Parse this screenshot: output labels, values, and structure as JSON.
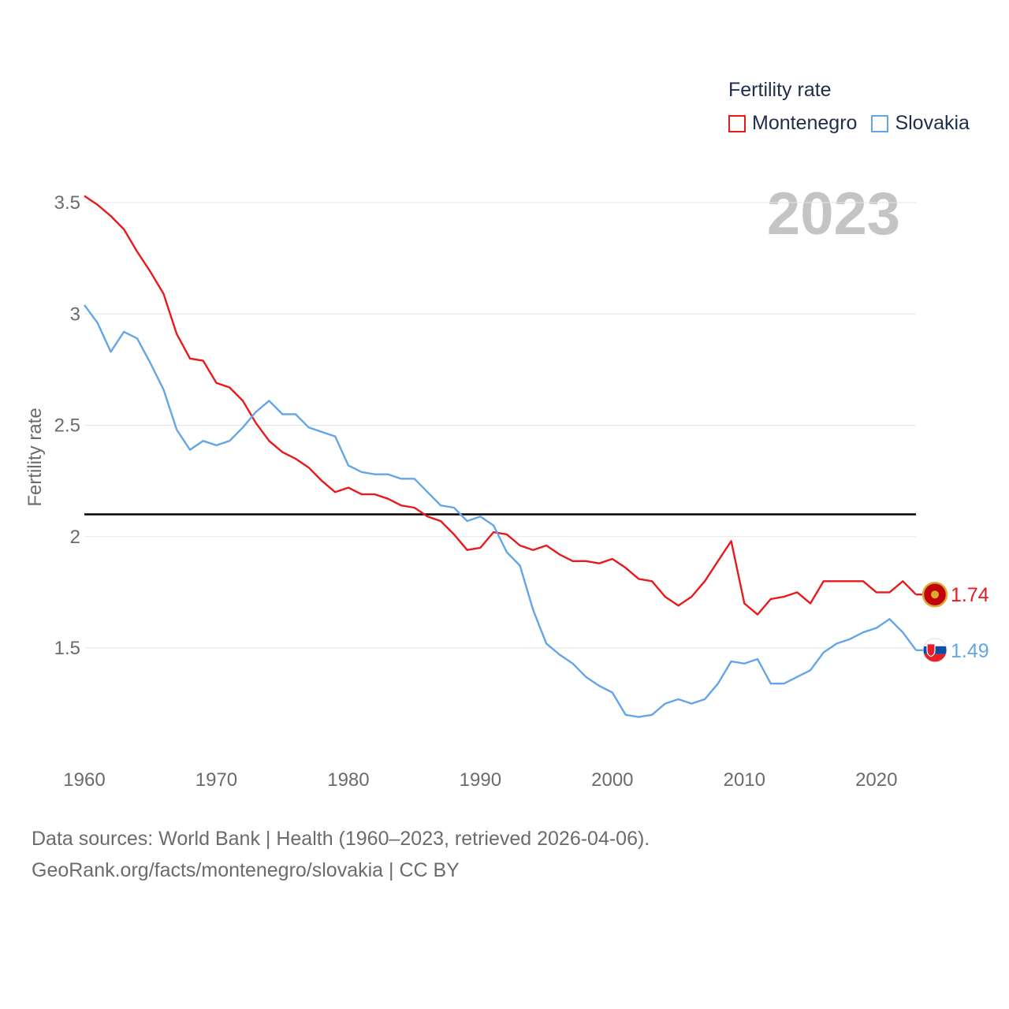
{
  "chart_data": {
    "type": "line",
    "legend_title": "Fertility rate",
    "ylabel": "Fertility rate",
    "current_year": "2023",
    "x": [
      1960,
      1961,
      1962,
      1963,
      1964,
      1965,
      1966,
      1967,
      1968,
      1969,
      1970,
      1971,
      1972,
      1973,
      1974,
      1975,
      1976,
      1977,
      1978,
      1979,
      1980,
      1981,
      1982,
      1983,
      1984,
      1985,
      1986,
      1987,
      1988,
      1989,
      1990,
      1991,
      1992,
      1993,
      1994,
      1995,
      1996,
      1997,
      1998,
      1999,
      2000,
      2001,
      2002,
      2003,
      2004,
      2005,
      2006,
      2007,
      2008,
      2009,
      2010,
      2011,
      2012,
      2013,
      2014,
      2015,
      2016,
      2017,
      2018,
      2019,
      2020,
      2021,
      2022,
      2023
    ],
    "xlim": [
      1960,
      2023
    ],
    "ylim": [
      1.0,
      3.53
    ],
    "xticks": [
      1960,
      1970,
      1980,
      1990,
      2000,
      2010,
      2020
    ],
    "yticks": [
      {
        "value": 1.5,
        "label": "1.5"
      },
      {
        "value": 2,
        "label": "2"
      },
      {
        "value": 2.5,
        "label": "2.5"
      },
      {
        "value": 3,
        "label": "3"
      },
      {
        "value": 3.5,
        "label": "3.5"
      }
    ],
    "reference_line": 2.1,
    "series": [
      {
        "name": "Montenegro",
        "color": "#e8191c",
        "end_label": "1.74",
        "flag": "montenegro-flag",
        "values": [
          3.53,
          3.49,
          3.44,
          3.38,
          3.28,
          3.19,
          3.09,
          2.91,
          2.8,
          2.79,
          2.69,
          2.67,
          2.61,
          2.51,
          2.43,
          2.38,
          2.35,
          2.31,
          2.25,
          2.2,
          2.22,
          2.19,
          2.19,
          2.17,
          2.14,
          2.13,
          2.09,
          2.07,
          2.01,
          1.94,
          1.95,
          2.02,
          2.01,
          1.96,
          1.94,
          1.96,
          1.92,
          1.89,
          1.89,
          1.88,
          1.9,
          1.86,
          1.81,
          1.8,
          1.73,
          1.69,
          1.73,
          1.8,
          1.89,
          1.98,
          1.7,
          1.65,
          1.72,
          1.73,
          1.75,
          1.7,
          1.8,
          1.8,
          1.8,
          1.8,
          1.75,
          1.75,
          1.8,
          1.74
        ]
      },
      {
        "name": "Slovakia",
        "color": "#62a6e8",
        "end_label": "1.49",
        "flag": "slovakia-flag",
        "values": [
          3.04,
          2.96,
          2.83,
          2.92,
          2.89,
          2.78,
          2.66,
          2.48,
          2.39,
          2.43,
          2.41,
          2.43,
          2.49,
          2.56,
          2.61,
          2.55,
          2.55,
          2.49,
          2.47,
          2.45,
          2.32,
          2.29,
          2.28,
          2.28,
          2.26,
          2.26,
          2.2,
          2.14,
          2.13,
          2.07,
          2.09,
          2.05,
          1.93,
          1.87,
          1.67,
          1.52,
          1.47,
          1.43,
          1.37,
          1.33,
          1.3,
          1.2,
          1.19,
          1.2,
          1.25,
          1.27,
          1.25,
          1.27,
          1.34,
          1.44,
          1.43,
          1.45,
          1.34,
          1.34,
          1.37,
          1.4,
          1.48,
          1.52,
          1.54,
          1.57,
          1.59,
          1.63,
          1.57,
          1.49
        ]
      }
    ]
  },
  "source": {
    "line1": "Data sources: World Bank | Health (1960–2023, retrieved 2026-04-06).",
    "line2": "GeoRank.org/facts/montenegro/slovakia | CC BY"
  }
}
